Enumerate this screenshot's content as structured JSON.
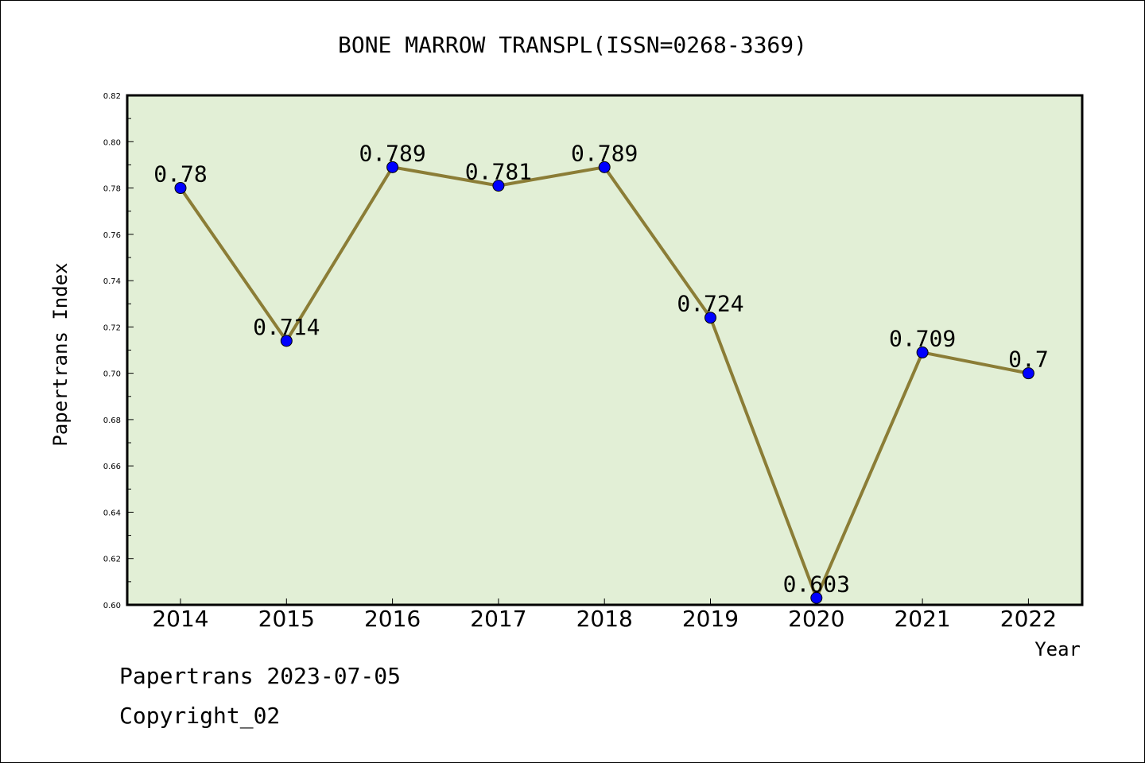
{
  "chart_data": {
    "type": "line",
    "title": "BONE MARROW TRANSPL(ISSN=0268-3369)",
    "xlabel": "Year",
    "ylabel": "Papertrans Index",
    "categories": [
      "2014",
      "2015",
      "2016",
      "2017",
      "2018",
      "2019",
      "2020",
      "2021",
      "2022"
    ],
    "series": [
      {
        "values": [
          0.78,
          0.714,
          0.789,
          0.781,
          0.789,
          0.724,
          0.603,
          0.709,
          0.7
        ],
        "data_labels": [
          "0.78",
          "0.714",
          "0.789",
          "0.781",
          "0.789",
          "0.724",
          "0.603",
          "0.709",
          "0.7"
        ],
        "line_color": "#8b7d36",
        "marker_color": "#0000ff"
      }
    ],
    "ylim": [
      0.6,
      0.82
    ],
    "y_ticks": [
      "0.60",
      "0.62",
      "0.64",
      "0.66",
      "0.68",
      "0.70",
      "0.72",
      "0.74",
      "0.76",
      "0.78",
      "0.80",
      "0.82"
    ],
    "grid": false,
    "plot_background": "#e2efd6"
  },
  "footer": {
    "date": "Papertrans 2023-07-05",
    "copyright": "Copyright_02"
  }
}
